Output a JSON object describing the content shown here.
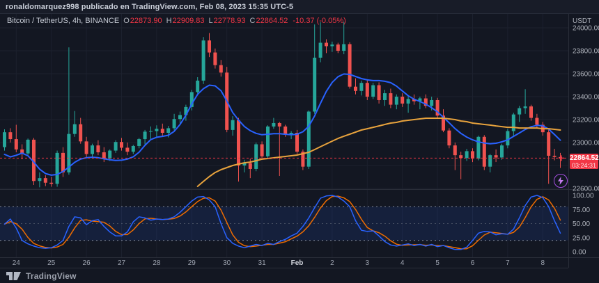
{
  "attribution_bar": {
    "text": "ronaldomarquez998 publicado en TradingView.com, Feb 08, 2023 15:35 UTC-5"
  },
  "legend": {
    "symbol": "Bitcoin / TetherUS, 4h, BINANCE",
    "o_label": "O",
    "o_value": "22873.90",
    "h_label": "H",
    "h_value": "22909.83",
    "l_label": "L",
    "l_value": "22778.93",
    "c_label": "C",
    "c_value": "22864.52",
    "change": "-10.37 (-0.05%)"
  },
  "price_badge": {
    "price": "22864.52",
    "countdown": "03:24:31"
  },
  "brand": {
    "name": "TradingView"
  },
  "colors": {
    "background": "#131722",
    "topbar": "#181c28",
    "grid": "#1c212e",
    "separator": "#2a2e39",
    "up": "#26a69a",
    "down": "#f0524f",
    "ma_fast": "#2962ff",
    "ma_slow": "#e8a33d",
    "stoch_k": "#2962ff",
    "stoch_d": "#ef6c00",
    "stoch_band_fill": "rgba(41,98,255,0.12)",
    "last_price": "#f23645",
    "axis_text": "#aeb2bb",
    "axis_text_bright": "#d1d4dc",
    "flash_icon": "#a74fe3"
  },
  "chart_data": {
    "type": "candlestick",
    "title": "Bitcoin / TetherUS, 4h, BINANCE",
    "currency_label": "USDT",
    "price_axis_ticks": [
      24000,
      23800,
      23600,
      23400,
      23200,
      23000,
      22600
    ],
    "price_gridlines": [
      22600,
      22800,
      23000,
      23200,
      23400,
      23600,
      23800,
      24000
    ],
    "price_ylim": [
      22594,
      24073
    ],
    "last_price": 22864.52,
    "time_axis": [
      {
        "i": 2,
        "label": "24"
      },
      {
        "i": 8,
        "label": "25"
      },
      {
        "i": 14,
        "label": "26"
      },
      {
        "i": 20,
        "label": "27"
      },
      {
        "i": 26,
        "label": "28"
      },
      {
        "i": 32,
        "label": "29"
      },
      {
        "i": 38,
        "label": "30"
      },
      {
        "i": 44,
        "label": "31"
      },
      {
        "i": 50,
        "label": "Feb",
        "em": true
      },
      {
        "i": 56,
        "label": "2"
      },
      {
        "i": 62,
        "label": "3"
      },
      {
        "i": 68,
        "label": "4"
      },
      {
        "i": 74,
        "label": "5"
      },
      {
        "i": 80,
        "label": "6"
      },
      {
        "i": 86,
        "label": "7"
      },
      {
        "i": 92,
        "label": "8"
      }
    ],
    "candles": [
      [
        22960,
        23115,
        22930,
        23090
      ],
      [
        23090,
        23125,
        23000,
        23030
      ],
      [
        23030,
        23155,
        22915,
        22940
      ],
      [
        22940,
        22985,
        22855,
        22905
      ],
      [
        22905,
        23035,
        22890,
        23025
      ],
      [
        23025,
        23040,
        22630,
        22665
      ],
      [
        22665,
        22740,
        22610,
        22690
      ],
      [
        22690,
        22715,
        22620,
        22650
      ],
      [
        22650,
        22700,
        22615,
        22640
      ],
      [
        22640,
        22930,
        22615,
        22910
      ],
      [
        22910,
        22960,
        22700,
        22740
      ],
      [
        22740,
        23830,
        22720,
        23075
      ],
      [
        23075,
        23275,
        23050,
        23160
      ],
      [
        23160,
        23215,
        22990,
        23010
      ],
      [
        23010,
        23050,
        22870,
        22900
      ],
      [
        22900,
        22990,
        22860,
        22975
      ],
      [
        22975,
        23020,
        22890,
        22915
      ],
      [
        22915,
        22960,
        22830,
        22860
      ],
      [
        22860,
        22940,
        22840,
        22930
      ],
      [
        22930,
        23020,
        22910,
        23005
      ],
      [
        23005,
        23040,
        22930,
        22955
      ],
      [
        22955,
        23000,
        22890,
        22920
      ],
      [
        22920,
        22980,
        22900,
        22970
      ],
      [
        22970,
        23040,
        22950,
        23030
      ],
      [
        23030,
        23110,
        22985,
        23095
      ],
      [
        23095,
        23140,
        23030,
        23100
      ],
      [
        23100,
        23150,
        23040,
        23120
      ],
      [
        23120,
        23165,
        23055,
        23085
      ],
      [
        23085,
        23145,
        23045,
        23125
      ],
      [
        23125,
        23250,
        23105,
        23205
      ],
      [
        23205,
        23270,
        23155,
        23240
      ],
      [
        23240,
        23330,
        23190,
        23310
      ],
      [
        23310,
        23460,
        23280,
        23440
      ],
      [
        23440,
        23570,
        23410,
        23540
      ],
      [
        23540,
        23920,
        23510,
        23890
      ],
      [
        23890,
        23955,
        23745,
        23785
      ],
      [
        23785,
        23820,
        23645,
        23675
      ],
      [
        23675,
        23720,
        23575,
        23610
      ],
      [
        23610,
        23660,
        23090,
        23110
      ],
      [
        23110,
        23230,
        23060,
        23195
      ],
      [
        23195,
        23215,
        22660,
        22800
      ],
      [
        22800,
        22850,
        22740,
        22820
      ],
      [
        22820,
        22860,
        22690,
        22770
      ],
      [
        22770,
        23000,
        22750,
        22985
      ],
      [
        22985,
        23010,
        22850,
        22880
      ],
      [
        22880,
        23150,
        22860,
        23140
      ],
      [
        23140,
        23215,
        23120,
        23170
      ],
      [
        23170,
        23180,
        22709,
        23140
      ],
      [
        23140,
        23155,
        23050,
        23070
      ],
      [
        23070,
        23100,
        23030,
        23085
      ],
      [
        23085,
        23110,
        22900,
        22920
      ],
      [
        22920,
        22940,
        22760,
        22790
      ],
      [
        22790,
        23280,
        22770,
        23270
      ],
      [
        23270,
        24030,
        23250,
        23740
      ],
      [
        23740,
        24050,
        23700,
        23870
      ],
      [
        23870,
        23900,
        23780,
        23840
      ],
      [
        23840,
        23880,
        23790,
        23855
      ],
      [
        23855,
        23870,
        23780,
        23800
      ],
      [
        23800,
        24051,
        23770,
        23858
      ],
      [
        23858,
        23875,
        23470,
        23487
      ],
      [
        23487,
        23560,
        23420,
        23450
      ],
      [
        23450,
        23540,
        23410,
        23520
      ],
      [
        23520,
        23545,
        23370,
        23400
      ],
      [
        23400,
        23520,
        23380,
        23500
      ],
      [
        23500,
        23525,
        23340,
        23370
      ],
      [
        23370,
        23460,
        23320,
        23430
      ],
      [
        23430,
        23470,
        23300,
        23330
      ],
      [
        23330,
        23420,
        23290,
        23400
      ],
      [
        23400,
        23430,
        23310,
        23340
      ],
      [
        23340,
        23410,
        23260,
        23380
      ],
      [
        23380,
        23420,
        23330,
        23360
      ],
      [
        23360,
        23400,
        23290,
        23385
      ],
      [
        23385,
        23420,
        23300,
        23320
      ],
      [
        23320,
        23400,
        23280,
        23370
      ],
      [
        23370,
        23390,
        23210,
        23235
      ],
      [
        23235,
        23290,
        23090,
        23105
      ],
      [
        23105,
        23125,
        22950,
        22975
      ],
      [
        22975,
        23000,
        22760,
        22890
      ],
      [
        22890,
        22920,
        22680,
        22865
      ],
      [
        22865,
        22945,
        22840,
        22925
      ],
      [
        22925,
        22950,
        22830,
        22860
      ],
      [
        22860,
        23060,
        22845,
        23050
      ],
      [
        23050,
        23065,
        22760,
        22790
      ],
      [
        22790,
        22900,
        22740,
        22890
      ],
      [
        22890,
        22940,
        22830,
        22870
      ],
      [
        22870,
        22990,
        22850,
        22975
      ],
      [
        22975,
        23120,
        22950,
        23100
      ],
      [
        23100,
        23260,
        23060,
        23245
      ],
      [
        23245,
        23320,
        23180,
        23300
      ],
      [
        23300,
        23465,
        23250,
        23315
      ],
      [
        23315,
        23330,
        23190,
        23215
      ],
      [
        23215,
        23250,
        23130,
        23155
      ],
      [
        23155,
        23180,
        23060,
        23090
      ],
      [
        23090,
        23110,
        22640,
        22885
      ],
      [
        22885,
        22945,
        22845,
        22875
      ],
      [
        22873.9,
        22909.83,
        22778.93,
        22864.52
      ]
    ],
    "ma_fast": [
      22897,
      22875,
      22889,
      22908,
      22885,
      22830,
      22768,
      22730,
      22716,
      22722,
      22748,
      22786,
      22828,
      22856,
      22868,
      22872,
      22868,
      22858,
      22850,
      22844,
      22846,
      22856,
      22876,
      22916,
      22976,
      23026,
      23046,
      23054,
      23064,
      23098,
      23158,
      23238,
      23336,
      23420,
      23470,
      23500,
      23494,
      23452,
      23362,
      23262,
      23196,
      23140,
      23104,
      23080,
      23068,
      23072,
      23078,
      23078,
      23072,
      23068,
      23072,
      23094,
      23142,
      23232,
      23342,
      23446,
      23524,
      23574,
      23598,
      23594,
      23576,
      23558,
      23546,
      23540,
      23540,
      23534,
      23522,
      23492,
      23450,
      23408,
      23378,
      23358,
      23334,
      23304,
      23268,
      23220,
      23172,
      23122,
      23080,
      23048,
      23024,
      23006,
      22996,
      22990,
      22994,
      23006,
      23024,
      23054,
      23084,
      23114,
      23138,
      23150,
      23146,
      23118,
      23070,
      23020
    ],
    "ma_slow": {
      "start": 33,
      "values": [
        22618,
        22661,
        22703,
        22739,
        22764,
        22782,
        22800,
        22812,
        22824,
        22830,
        22842,
        22855,
        22861,
        22867,
        22873,
        22879,
        22885,
        22891,
        22903,
        22915,
        22939,
        22964,
        22988,
        23012,
        23036,
        23055,
        23073,
        23091,
        23109,
        23121,
        23133,
        23145,
        23158,
        23170,
        23176,
        23188,
        23194,
        23200,
        23206,
        23212,
        23212,
        23212,
        23212,
        23206,
        23200,
        23188,
        23182,
        23170,
        23164,
        23158,
        23152,
        23145,
        23139,
        23133,
        23133,
        23127,
        23127,
        23127,
        23127,
        23121,
        23121,
        23115,
        23109
      ]
    },
    "stochastic": {
      "k": [
        49,
        58,
        42,
        20,
        14,
        10,
        7,
        6,
        7,
        12,
        20,
        45,
        62,
        60,
        48,
        55,
        57,
        45,
        35,
        28,
        28,
        35,
        53,
        62,
        60,
        56,
        58,
        57,
        58,
        62,
        70,
        80,
        90,
        97,
        98,
        92,
        80,
        50,
        25,
        15,
        10,
        7,
        10,
        13,
        11,
        15,
        13,
        18,
        22,
        28,
        33,
        45,
        60,
        78,
        95,
        99,
        100,
        97,
        90,
        80,
        55,
        38,
        36,
        37,
        28,
        18,
        12,
        10,
        12,
        14,
        11,
        13,
        10,
        13,
        9,
        11,
        7,
        4,
        4,
        8,
        20,
        33,
        36,
        35,
        30,
        32,
        31,
        40,
        60,
        82,
        97,
        100,
        96,
        80,
        55,
        33
      ],
      "d_smoothing": 3,
      "bands": [
        80,
        50,
        20
      ],
      "ticks": [
        100,
        75,
        50,
        25,
        0
      ],
      "ylim": [
        0,
        100
      ]
    }
  }
}
